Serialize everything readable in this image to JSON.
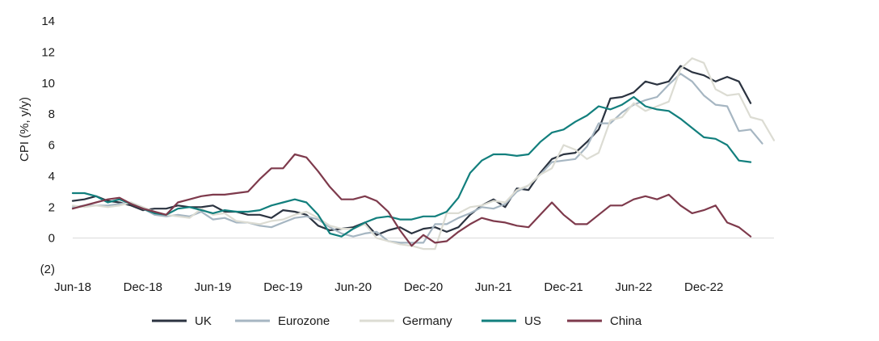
{
  "chart_data": {
    "type": "line",
    "title": "",
    "xlabel": "",
    "ylabel": "CPI (%, y/y)",
    "ylim": [
      -2,
      14
    ],
    "yticks": [
      {
        "value": 14,
        "label": "14"
      },
      {
        "value": 12,
        "label": "12"
      },
      {
        "value": 10,
        "label": "10"
      },
      {
        "value": 8,
        "label": "8"
      },
      {
        "value": 6,
        "label": "6"
      },
      {
        "value": 4,
        "label": "4"
      },
      {
        "value": 2,
        "label": "2"
      },
      {
        "value": 0,
        "label": "0"
      },
      {
        "value": -2,
        "label": "(2)"
      }
    ],
    "x_range": [
      0,
      60
    ],
    "xticks": [
      {
        "index": 0,
        "label": "Jun-18"
      },
      {
        "index": 6,
        "label": "Dec-18"
      },
      {
        "index": 12,
        "label": "Jun-19"
      },
      {
        "index": 18,
        "label": "Dec-19"
      },
      {
        "index": 24,
        "label": "Jun-20"
      },
      {
        "index": 30,
        "label": "Dec-20"
      },
      {
        "index": 36,
        "label": "Jun-21"
      },
      {
        "index": 42,
        "label": "Dec-21"
      },
      {
        "index": 48,
        "label": "Jun-22"
      },
      {
        "index": 54,
        "label": "Dec-22"
      }
    ],
    "grid": false,
    "legend_position": "bottom",
    "series": [
      {
        "name": "UK",
        "color": "#2b3340",
        "values": [
          2.4,
          2.5,
          2.7,
          2.4,
          2.3,
          2.1,
          1.8,
          1.9,
          1.9,
          2.1,
          2.0,
          2.0,
          2.1,
          1.7,
          1.7,
          1.5,
          1.5,
          1.3,
          1.8,
          1.7,
          1.5,
          0.8,
          0.5,
          0.6,
          0.7,
          1.0,
          0.2,
          0.5,
          0.7,
          0.3,
          0.6,
          0.7,
          0.4,
          0.7,
          1.5,
          2.1,
          2.5,
          2.0,
          3.2,
          3.1,
          4.2,
          5.1,
          5.4,
          5.5,
          6.2,
          7.0,
          9.0,
          9.1,
          9.4,
          10.1,
          9.9,
          10.1,
          11.1,
          10.7,
          10.5,
          10.1,
          10.4,
          10.1,
          8.7
        ]
      },
      {
        "name": "Eurozone",
        "color": "#a6b6c2",
        "values": [
          2.0,
          2.1,
          2.1,
          2.1,
          2.2,
          2.3,
          1.9,
          1.5,
          1.4,
          1.5,
          1.4,
          1.7,
          1.2,
          1.3,
          1.0,
          1.0,
          0.8,
          0.7,
          1.0,
          1.3,
          1.4,
          1.2,
          0.7,
          0.3,
          0.1,
          0.3,
          0.4,
          -0.2,
          -0.3,
          -0.3,
          -0.3,
          0.9,
          0.9,
          1.3,
          1.6,
          2.0,
          1.9,
          2.2,
          3.0,
          3.4,
          4.1,
          4.9,
          5.0,
          5.1,
          5.9,
          7.4,
          7.4,
          8.1,
          8.6,
          8.9,
          9.1,
          9.9,
          10.6,
          10.1,
          9.2,
          8.6,
          8.5,
          6.9,
          7.0,
          6.1
        ]
      },
      {
        "name": "Germany",
        "color": "#dcdcd3",
        "values": [
          2.1,
          2.0,
          2.1,
          2.0,
          2.1,
          2.3,
          2.0,
          1.7,
          1.5,
          1.4,
          1.3,
          1.9,
          1.5,
          1.6,
          1.1,
          1.0,
          0.9,
          1.1,
          1.2,
          1.5,
          1.7,
          1.3,
          0.8,
          0.6,
          0.6,
          0.9,
          0.0,
          -0.2,
          -0.4,
          -0.5,
          -0.7,
          -0.7,
          1.6,
          1.6,
          2.0,
          2.1,
          2.4,
          2.3,
          3.1,
          3.4,
          4.1,
          4.5,
          6.0,
          5.7,
          5.1,
          5.5,
          7.6,
          7.8,
          8.7,
          8.2,
          8.5,
          8.8,
          10.9,
          11.6,
          11.3,
          9.6,
          9.2,
          9.3,
          7.8,
          7.6,
          6.3
        ]
      },
      {
        "name": "US",
        "color": "#127f7d",
        "values": [
          2.9,
          2.9,
          2.7,
          2.3,
          2.5,
          2.2,
          1.9,
          1.6,
          1.5,
          1.9,
          2.0,
          1.8,
          1.6,
          1.8,
          1.7,
          1.7,
          1.8,
          2.1,
          2.3,
          2.5,
          2.3,
          1.5,
          0.3,
          0.1,
          0.6,
          1.0,
          1.3,
          1.4,
          1.2,
          1.2,
          1.4,
          1.4,
          1.7,
          2.6,
          4.2,
          5.0,
          5.4,
          5.4,
          5.3,
          5.4,
          6.2,
          6.8,
          7.0,
          7.5,
          7.9,
          8.5,
          8.3,
          8.6,
          9.1,
          8.5,
          8.3,
          8.2,
          7.7,
          7.1,
          6.5,
          6.4,
          6.0,
          5.0,
          4.9
        ]
      },
      {
        "name": "China",
        "color": "#7e3a4c",
        "values": [
          1.9,
          2.1,
          2.3,
          2.5,
          2.6,
          2.2,
          1.9,
          1.7,
          1.5,
          2.3,
          2.5,
          2.7,
          2.8,
          2.8,
          2.9,
          3.0,
          3.8,
          4.5,
          4.5,
          5.4,
          5.2,
          4.3,
          3.3,
          2.5,
          2.5,
          2.7,
          2.4,
          1.7,
          0.5,
          -0.5,
          0.2,
          -0.3,
          -0.2,
          0.4,
          0.9,
          1.3,
          1.1,
          1.0,
          0.8,
          0.7,
          1.5,
          2.3,
          1.5,
          0.9,
          0.9,
          1.5,
          2.1,
          2.1,
          2.5,
          2.7,
          2.5,
          2.8,
          2.1,
          1.6,
          1.8,
          2.1,
          1.0,
          0.7,
          0.1
        ]
      }
    ]
  }
}
